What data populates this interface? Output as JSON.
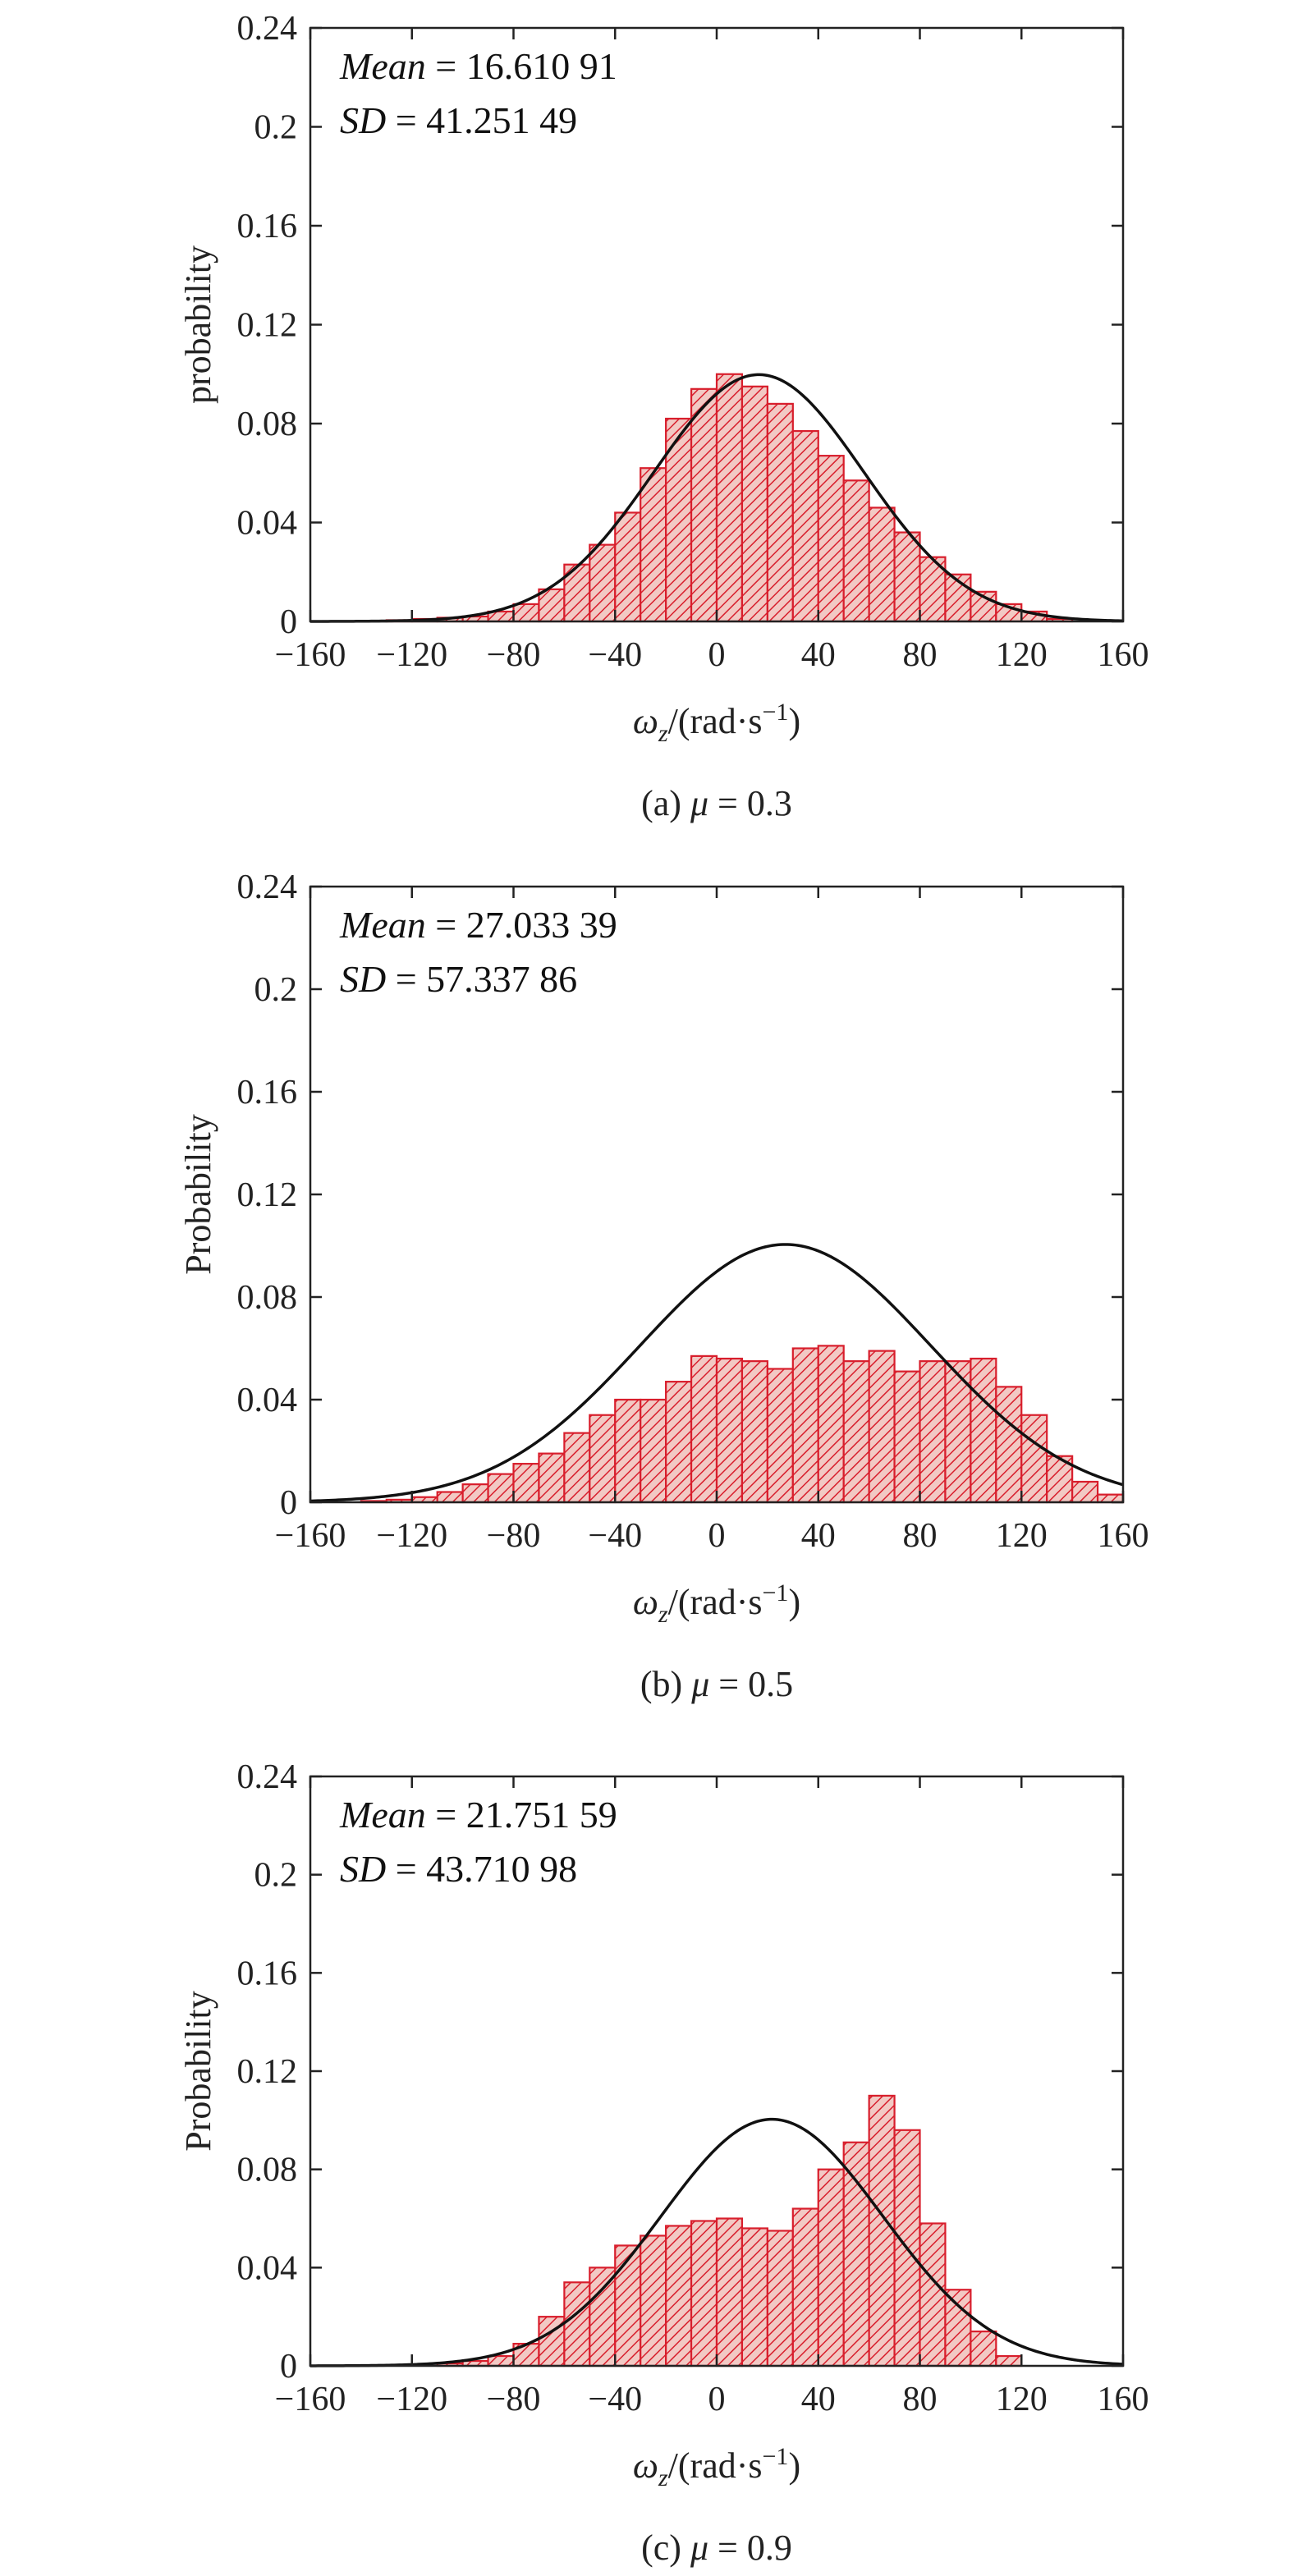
{
  "chart_data": [
    {
      "type": "bar",
      "caption": "(a) μ = 0.3",
      "caption_prefix": "(a) ",
      "caption_symbol": "μ",
      "caption_suffix": " = 0.3",
      "ylabel": "probability",
      "xlabel_symbol": "ω",
      "xlabel_sub": "z",
      "xlabel_unit_prefix": "/(rad·s",
      "xlabel_unit_sup": "−1",
      "xlabel_unit_suffix": ")",
      "mean_label": "Mean",
      "mean_value": "= 16.610 91",
      "sd_label": "SD",
      "sd_value": "= 41.251 49",
      "mean": 16.61091,
      "sd": 41.25149,
      "fit_scale": 0.0998,
      "xlim": [
        -160,
        160
      ],
      "ylim": [
        0,
        0.24
      ],
      "xticks": [
        -160,
        -120,
        -80,
        -40,
        0,
        40,
        80,
        120,
        160
      ],
      "xtick_labels": [
        "−160",
        "−120",
        "−80",
        "−40",
        "0",
        "40",
        "80",
        "120",
        "160"
      ],
      "yticks": [
        0,
        0.04,
        0.08,
        0.12,
        0.16,
        0.2,
        0.24
      ],
      "ytick_labels": [
        "0",
        "0.04",
        "0.08",
        "0.12",
        "0.16",
        "0.2",
        "0.24"
      ],
      "bin_width": 10,
      "bin_starts": [
        -130,
        -120,
        -110,
        -100,
        -90,
        -80,
        -70,
        -60,
        -50,
        -40,
        -30,
        -20,
        -10,
        0,
        10,
        20,
        30,
        40,
        50,
        60,
        70,
        80,
        90,
        100,
        110,
        120,
        130
      ],
      "values": [
        0.0005,
        0.001,
        0.0015,
        0.002,
        0.004,
        0.007,
        0.013,
        0.023,
        0.031,
        0.044,
        0.062,
        0.082,
        0.094,
        0.1,
        0.095,
        0.088,
        0.077,
        0.067,
        0.057,
        0.046,
        0.036,
        0.026,
        0.019,
        0.012,
        0.007,
        0.004,
        0.001
      ]
    },
    {
      "type": "bar",
      "caption": "(b) μ = 0.5",
      "caption_prefix": "(b) ",
      "caption_symbol": "μ",
      "caption_suffix": " = 0.5",
      "ylabel": "Probability",
      "xlabel_symbol": "ω",
      "xlabel_sub": "z",
      "xlabel_unit_prefix": "/(rad·s",
      "xlabel_unit_sup": "−1",
      "xlabel_unit_suffix": ")",
      "mean_label": "Mean",
      "mean_value": "= 27.033 39",
      "sd_label": "SD",
      "sd_value": "= 57.337 86",
      "mean": 27.03339,
      "sd": 57.33786,
      "fit_scale": 0.1005,
      "xlim": [
        -160,
        160
      ],
      "ylim": [
        0,
        0.24
      ],
      "xticks": [
        -160,
        -120,
        -80,
        -40,
        0,
        40,
        80,
        120,
        160
      ],
      "xtick_labels": [
        "−160",
        "−120",
        "−80",
        "−40",
        "0",
        "40",
        "80",
        "120",
        "160"
      ],
      "yticks": [
        0,
        0.04,
        0.08,
        0.12,
        0.16,
        0.2,
        0.24
      ],
      "ytick_labels": [
        "0",
        "0.04",
        "0.08",
        "0.12",
        "0.16",
        "0.2",
        "0.24"
      ],
      "bin_width": 10,
      "bin_starts": [
        -140,
        -130,
        -120,
        -110,
        -100,
        -90,
        -80,
        -70,
        -60,
        -50,
        -40,
        -30,
        -20,
        -10,
        0,
        10,
        20,
        30,
        40,
        50,
        60,
        70,
        80,
        90,
        100,
        110,
        120,
        130,
        140,
        150
      ],
      "values": [
        0.0005,
        0.001,
        0.002,
        0.004,
        0.007,
        0.011,
        0.015,
        0.019,
        0.027,
        0.034,
        0.04,
        0.04,
        0.047,
        0.057,
        0.056,
        0.055,
        0.052,
        0.06,
        0.061,
        0.055,
        0.059,
        0.051,
        0.055,
        0.055,
        0.056,
        0.045,
        0.034,
        0.018,
        0.008,
        0.003
      ]
    },
    {
      "type": "bar",
      "caption": "(c) μ = 0.9",
      "caption_prefix": "(c) ",
      "caption_symbol": "μ",
      "caption_suffix": " = 0.9",
      "ylabel": "Probability",
      "xlabel_symbol": "ω",
      "xlabel_sub": "z",
      "xlabel_unit_prefix": "/(rad·s",
      "xlabel_unit_sup": "−1",
      "xlabel_unit_suffix": ")",
      "mean_label": "Mean",
      "mean_value": "= 21.751 59",
      "sd_label": "SD",
      "sd_value": "= 43.710 98",
      "mean": 21.75159,
      "sd": 43.71098,
      "fit_scale": 0.1004,
      "xlim": [
        -160,
        160
      ],
      "ylim": [
        0,
        0.24
      ],
      "xticks": [
        -160,
        -120,
        -80,
        -40,
        0,
        40,
        80,
        120,
        160
      ],
      "xtick_labels": [
        "−160",
        "−120",
        "−80",
        "−40",
        "0",
        "40",
        "80",
        "120",
        "160"
      ],
      "yticks": [
        0,
        0.04,
        0.08,
        0.12,
        0.16,
        0.2,
        0.24
      ],
      "ytick_labels": [
        "0",
        "0.04",
        "0.08",
        "0.12",
        "0.16",
        "0.2",
        "0.24"
      ],
      "bin_width": 10,
      "bin_starts": [
        -110,
        -100,
        -90,
        -80,
        -70,
        -60,
        -50,
        -40,
        -30,
        -20,
        -10,
        0,
        10,
        20,
        30,
        40,
        50,
        60,
        70,
        80,
        90,
        100,
        110
      ],
      "values": [
        0.001,
        0.002,
        0.004,
        0.009,
        0.02,
        0.034,
        0.04,
        0.049,
        0.053,
        0.057,
        0.059,
        0.06,
        0.056,
        0.055,
        0.064,
        0.08,
        0.091,
        0.11,
        0.096,
        0.058,
        0.031,
        0.014,
        0.004
      ]
    }
  ],
  "colors": {
    "bar_stroke": "#d81e2c",
    "bar_fill": "#f2c9c4",
    "hatch": "#d81e2c",
    "curve": "#111111",
    "axis": "#222222"
  }
}
